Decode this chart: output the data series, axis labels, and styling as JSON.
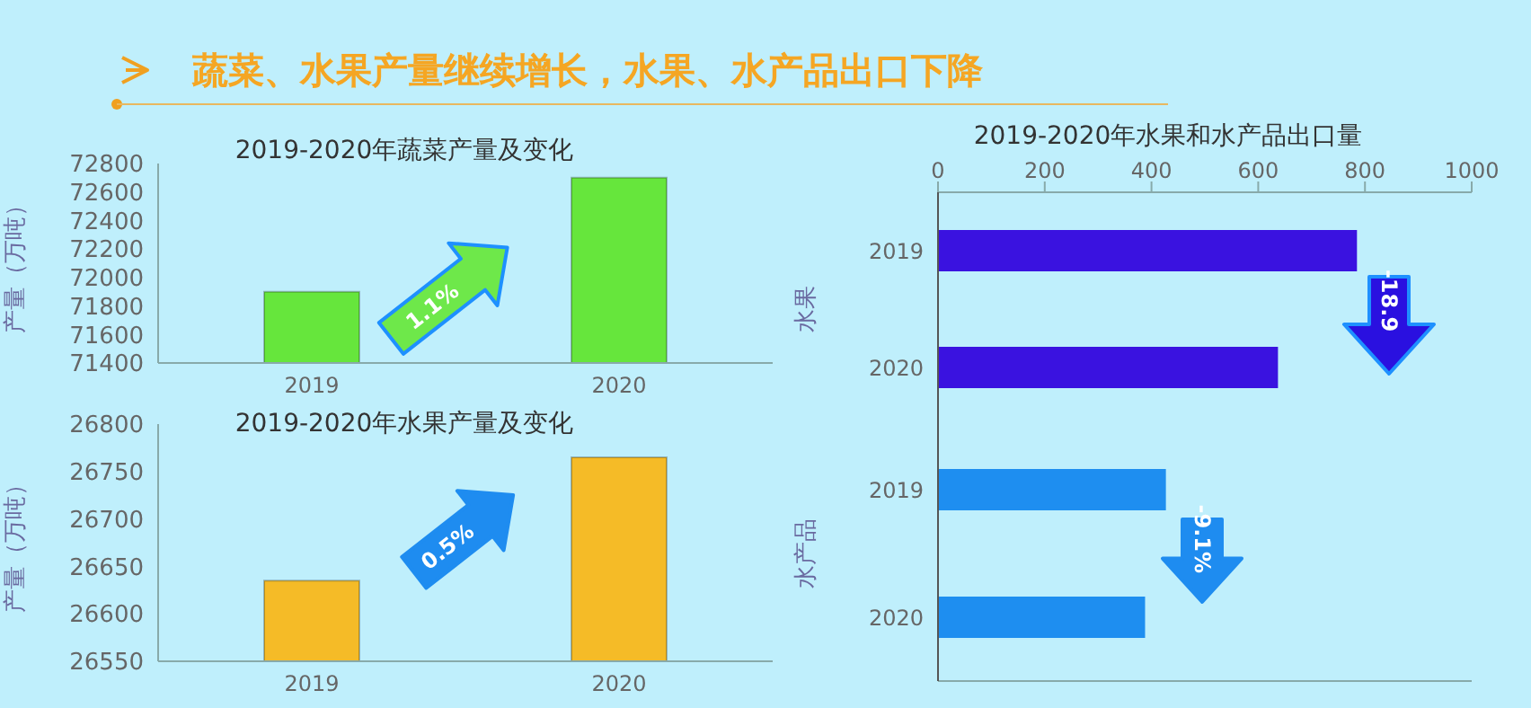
{
  "chart_data": [
    {
      "type": "other",
      "title": "蔬菜、水果产量继续增长，水果、水产品出口下降"
    },
    {
      "type": "bar",
      "title": "2019-2020年蔬菜产量及变化",
      "ylabel": "产量（万吨）",
      "categories": [
        "2019",
        "2020"
      ],
      "values": [
        71900,
        72700
      ],
      "color": "#66e63c",
      "ylim": [
        71400,
        72800
      ],
      "yticks": [
        71400,
        71600,
        71800,
        72000,
        72200,
        72400,
        72600,
        72800
      ],
      "annotations": [
        "1.1%"
      ]
    },
    {
      "type": "bar",
      "title": "2019-2020年水果产量及变化",
      "ylabel": "产量（万吨）",
      "categories": [
        "2019",
        "2020"
      ],
      "values": [
        26635,
        26765
      ],
      "color": "#f5bb27",
      "ylim": [
        26550,
        26800
      ],
      "yticks": [
        26550,
        26600,
        26650,
        26700,
        26750,
        26800
      ],
      "annotations": [
        "0.5%"
      ]
    },
    {
      "type": "bar",
      "orientation": "horizontal",
      "title": "2019-2020年水果和水产品出口量",
      "ylabel": "水果",
      "categories": [
        "2019",
        "2020"
      ],
      "values": [
        785,
        637
      ],
      "color": "#3a12e0",
      "xlim": [
        0,
        1000
      ],
      "xticks": [
        0,
        200,
        400,
        600,
        800,
        1000
      ],
      "annotations": [
        "-18.9"
      ]
    },
    {
      "type": "bar",
      "orientation": "horizontal",
      "ylabel": "水产品",
      "categories": [
        "2019",
        "2020"
      ],
      "values": [
        427,
        388
      ],
      "color": "#1e8ef0",
      "xlim": [
        0,
        1000
      ],
      "xticks": [
        0,
        200,
        400,
        600,
        800,
        1000
      ],
      "tick_labels": "y",
      "annotations": [
        "-9.1%"
      ]
    }
  ]
}
